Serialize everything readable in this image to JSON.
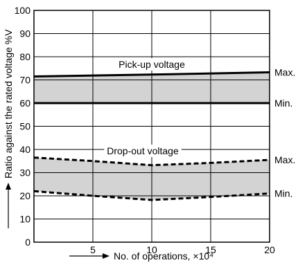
{
  "chart_data": {
    "type": "line",
    "title": "",
    "xlabel": "No. of operations, ×10⁴",
    "ylabel": "Ratio against the rated voltage %V",
    "xlim": [
      0,
      20
    ],
    "ylim": [
      0,
      100
    ],
    "x_ticks": [
      "5",
      "10",
      "15",
      "20"
    ],
    "y_ticks": [
      "0",
      "10",
      "20",
      "30",
      "40",
      "50",
      "60",
      "70",
      "80",
      "90",
      "100"
    ],
    "grid": true,
    "bands": [
      {
        "name": "Pick-up voltage",
        "upper": {
          "label": "Max.",
          "style": "solid",
          "points": [
            [
              0,
              71.5
            ],
            [
              10,
              72.3
            ],
            [
              20,
              73.3
            ]
          ]
        },
        "lower": {
          "label": "Min.",
          "style": "solid",
          "points": [
            [
              0,
              60
            ],
            [
              10,
              60
            ],
            [
              20,
              60
            ]
          ]
        },
        "fill": "#d3d3d3"
      },
      {
        "name": "Drop-out voltage",
        "upper": {
          "label": "Max.",
          "style": "dashed",
          "points": [
            [
              0,
              36.5
            ],
            [
              5,
              35
            ],
            [
              10,
              33.2
            ],
            [
              15,
              34.2
            ],
            [
              20,
              35.5
            ]
          ]
        },
        "lower": {
          "label": "Min.",
          "style": "dashed",
          "points": [
            [
              0,
              22
            ],
            [
              5,
              20
            ],
            [
              10,
              18.2
            ],
            [
              15,
              19.5
            ],
            [
              20,
              21
            ]
          ]
        },
        "fill": "#d3d3d3"
      }
    ]
  }
}
